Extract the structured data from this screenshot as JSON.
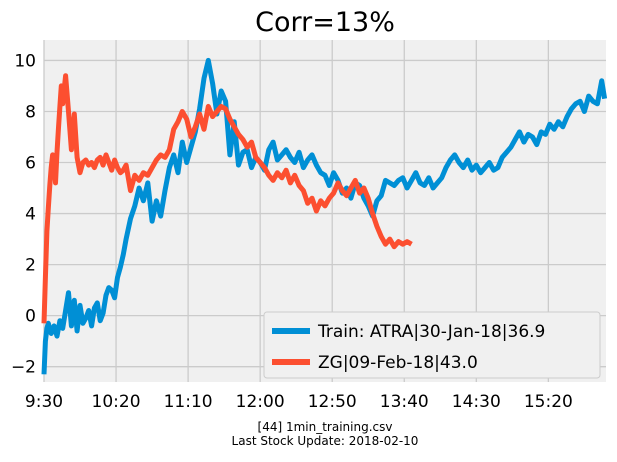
{
  "chart_data": {
    "type": "line",
    "title": "Corr=13%",
    "xlabel": "",
    "ylabel": "",
    "x_ticks": [
      "9:30",
      "10:20",
      "11:10",
      "12:00",
      "12:50",
      "13:40",
      "14:30",
      "15:20"
    ],
    "x_tick_minutes": [
      0,
      50,
      100,
      150,
      200,
      250,
      300,
      350
    ],
    "x_range_minutes": [
      0,
      390
    ],
    "y_ticks": [
      -2,
      0,
      2,
      4,
      6,
      8,
      10
    ],
    "ylim": [
      -2.6,
      10.8
    ],
    "grid": true,
    "legend_position": "lower-right",
    "footer_lines": [
      "[44] 1min_training.csv",
      "Last Stock Update: 2018-02-10"
    ],
    "colors": {
      "background": "#f0f0f0",
      "grid": "#cbcbcb",
      "train": "#008fd5",
      "test": "#fc4f30"
    },
    "series": [
      {
        "name": "Train: ATRA|30-Jan-18|36.9",
        "color": "#008fd5",
        "x": [
          0,
          1,
          2,
          3,
          5,
          7,
          9,
          11,
          13,
          15,
          17,
          19,
          21,
          23,
          25,
          27,
          29,
          31,
          33,
          35,
          37,
          39,
          41,
          43,
          45,
          47,
          49,
          51,
          53,
          55,
          57,
          60,
          63,
          66,
          69,
          72,
          75,
          78,
          81,
          84,
          87,
          90,
          93,
          96,
          99,
          102,
          105,
          108,
          111,
          114,
          117,
          120,
          123,
          126,
          129,
          132,
          135,
          138,
          141,
          144,
          147,
          150,
          153,
          156,
          159,
          162,
          165,
          168,
          171,
          174,
          177,
          180,
          183,
          186,
          189,
          192,
          195,
          198,
          201,
          204,
          207,
          210,
          213,
          216,
          219,
          222,
          225,
          228,
          231,
          234,
          237,
          240,
          243,
          246,
          249,
          252,
          255,
          258,
          261,
          264,
          267,
          270,
          273,
          276,
          279,
          282,
          285,
          288,
          291,
          294,
          297,
          300,
          303,
          306,
          309,
          312,
          315,
          318,
          321,
          324,
          327,
          330,
          333,
          336,
          339,
          342,
          345,
          348,
          351,
          354,
          357,
          360,
          363,
          366,
          369,
          372,
          375,
          378,
          381,
          384,
          387,
          389
        ],
        "y": [
          -2.3,
          -1.0,
          -0.5,
          -0.3,
          -0.7,
          -0.4,
          -0.8,
          -0.2,
          -0.5,
          0.2,
          0.9,
          -0.4,
          0.6,
          -0.6,
          0.4,
          -0.3,
          -0.1,
          0.2,
          -0.4,
          0.3,
          0.5,
          -0.2,
          0.1,
          0.8,
          1.1,
          1.0,
          0.7,
          1.5,
          1.9,
          2.4,
          3.0,
          3.8,
          4.3,
          5.0,
          4.5,
          5.2,
          3.7,
          4.5,
          3.9,
          4.9,
          5.8,
          6.3,
          5.6,
          6.8,
          6.0,
          6.6,
          7.2,
          8.1,
          9.3,
          10.0,
          9.1,
          7.9,
          8.8,
          8.4,
          6.3,
          7.6,
          5.9,
          6.4,
          6.5,
          5.8,
          6.2,
          6.0,
          5.7,
          6.5,
          6.8,
          6.1,
          6.3,
          6.5,
          6.2,
          6.0,
          6.4,
          5.8,
          6.1,
          6.3,
          5.9,
          5.6,
          5.5,
          5.1,
          5.6,
          5.3,
          4.8,
          5.0,
          4.6,
          5.2,
          5.1,
          4.6,
          4.3,
          3.9,
          4.5,
          4.7,
          5.3,
          5.2,
          5.1,
          5.3,
          5.4,
          5.0,
          5.3,
          5.6,
          5.2,
          5.1,
          5.4,
          5.0,
          5.2,
          5.4,
          5.8,
          6.1,
          6.3,
          6.0,
          5.8,
          6.1,
          5.7,
          5.9,
          5.6,
          5.8,
          6.0,
          5.7,
          5.8,
          6.2,
          6.4,
          6.6,
          6.9,
          7.2,
          6.8,
          7.1,
          7.0,
          6.7,
          7.2,
          7.1,
          7.5,
          7.3,
          7.6,
          7.4,
          7.8,
          8.1,
          8.3,
          8.4,
          8.0,
          8.6,
          8.4,
          8.3,
          9.2,
          8.5
        ]
      },
      {
        "name": "ZG|09-Feb-18|43.0",
        "color": "#fc4f30",
        "x": [
          0,
          1,
          2,
          3,
          4,
          5,
          6,
          7,
          8,
          9,
          10,
          11,
          12,
          13,
          15,
          17,
          19,
          21,
          23,
          25,
          27,
          29,
          31,
          33,
          35,
          37,
          39,
          41,
          43,
          45,
          47,
          49,
          51,
          53,
          55,
          57,
          60,
          63,
          66,
          69,
          72,
          75,
          78,
          81,
          84,
          87,
          90,
          93,
          96,
          99,
          102,
          105,
          108,
          111,
          114,
          117,
          120,
          123,
          126,
          129,
          132,
          135,
          138,
          141,
          144,
          147,
          150,
          153,
          156,
          159,
          162,
          165,
          168,
          171,
          174,
          177,
          180,
          183,
          186,
          189,
          192,
          195,
          198,
          201,
          204,
          207,
          210,
          213,
          216,
          219,
          222,
          225,
          228,
          231,
          234,
          237,
          240,
          243,
          246,
          249,
          252,
          255
        ],
        "y": [
          -0.3,
          1.5,
          3.3,
          4.2,
          5.1,
          5.8,
          6.3,
          6.1,
          5.2,
          6.4,
          7.3,
          8.2,
          9.0,
          8.3,
          9.4,
          8.0,
          6.5,
          7.9,
          6.2,
          5.6,
          6.0,
          6.1,
          5.9,
          6.0,
          5.8,
          6.1,
          6.2,
          5.9,
          6.3,
          6.0,
          5.7,
          6.1,
          5.8,
          5.6,
          5.7,
          5.9,
          4.9,
          5.5,
          5.3,
          5.6,
          5.5,
          5.8,
          6.1,
          6.3,
          6.2,
          6.5,
          7.3,
          7.6,
          8.0,
          7.7,
          7.0,
          7.4,
          7.9,
          7.3,
          8.2,
          7.8,
          8.0,
          8.2,
          8.1,
          7.7,
          7.4,
          7.1,
          6.9,
          6.6,
          6.8,
          6.2,
          6.0,
          5.8,
          5.5,
          5.3,
          5.6,
          5.4,
          5.7,
          5.2,
          5.5,
          5.1,
          4.9,
          4.4,
          4.6,
          4.1,
          4.5,
          4.3,
          4.6,
          4.8,
          5.2,
          4.9,
          4.7,
          5.0,
          5.3,
          4.8,
          5.0,
          4.6,
          4.0,
          3.5,
          3.1,
          2.8,
          3.0,
          2.7,
          2.9,
          2.8,
          2.9,
          2.8
        ]
      }
    ]
  }
}
